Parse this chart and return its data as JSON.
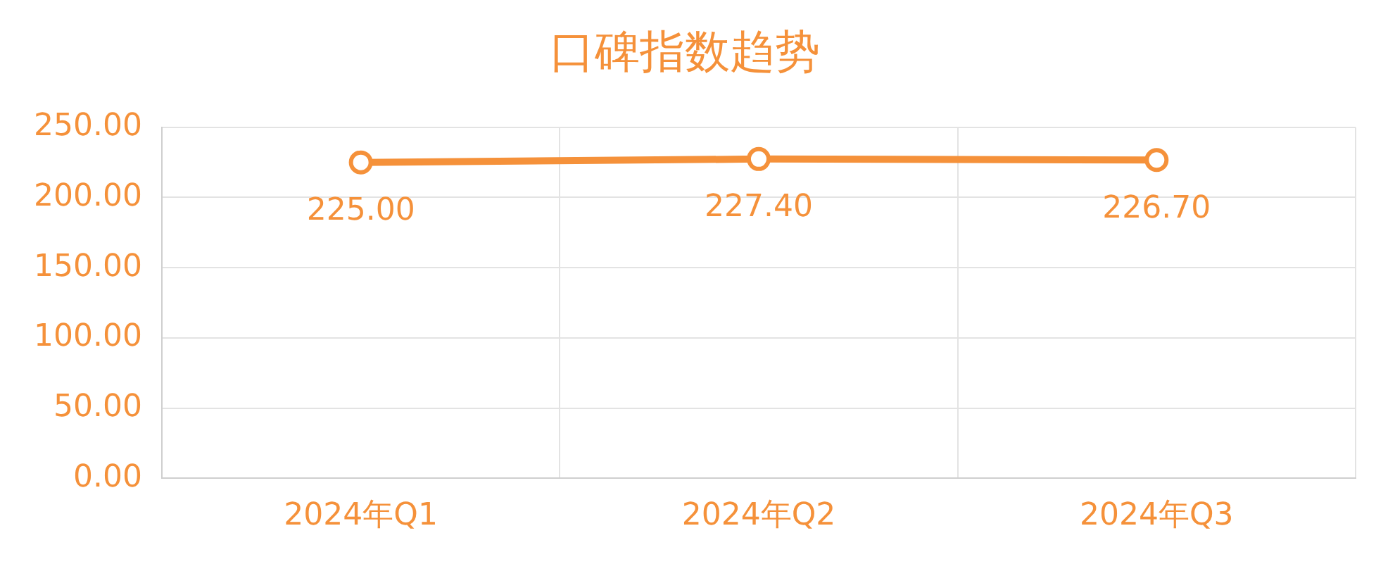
{
  "chart_data": {
    "type": "line",
    "title": "口碑指数趋势",
    "categories": [
      "2024年Q1",
      "2024年Q2",
      "2024年Q3"
    ],
    "series": [
      {
        "color": "#f5913a",
        "values": [
          225.0,
          227.4,
          226.7
        ],
        "value_labels": [
          "225.00",
          "227.40",
          "226.70"
        ]
      }
    ],
    "ylim": [
      0,
      250
    ],
    "yticks": [
      {
        "value": 0,
        "label": "0.00"
      },
      {
        "value": 50,
        "label": "50.00"
      },
      {
        "value": 100,
        "label": "100.00"
      },
      {
        "value": 150,
        "label": "150.00"
      },
      {
        "value": 200,
        "label": "200.00"
      },
      {
        "value": 250,
        "label": "250.00"
      }
    ],
    "grid": true,
    "marker": "circle",
    "line_style": "solid",
    "legend": false
  }
}
